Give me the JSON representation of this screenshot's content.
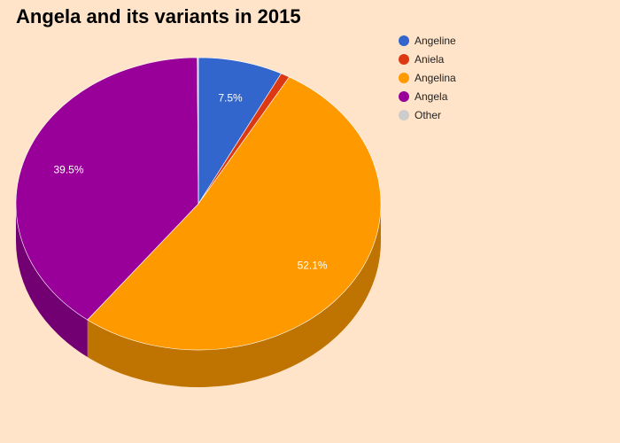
{
  "chart_data": {
    "type": "pie",
    "title": "Angela and its variants in 2015",
    "slices": [
      {
        "name": "Angeline",
        "value": 7.5,
        "label": "7.5%",
        "color": "#3366cc"
      },
      {
        "name": "Aniela",
        "value": 0.8,
        "label": "",
        "color": "#dc3912"
      },
      {
        "name": "Angelina",
        "value": 52.1,
        "label": "52.1%",
        "color": "#ff9900"
      },
      {
        "name": "Angela",
        "value": 39.5,
        "label": "39.5%",
        "color": "#990099"
      },
      {
        "name": "Other",
        "value": 0.1,
        "label": "",
        "color": "#cccccc"
      }
    ],
    "legend_position": "right",
    "style": "3d"
  }
}
